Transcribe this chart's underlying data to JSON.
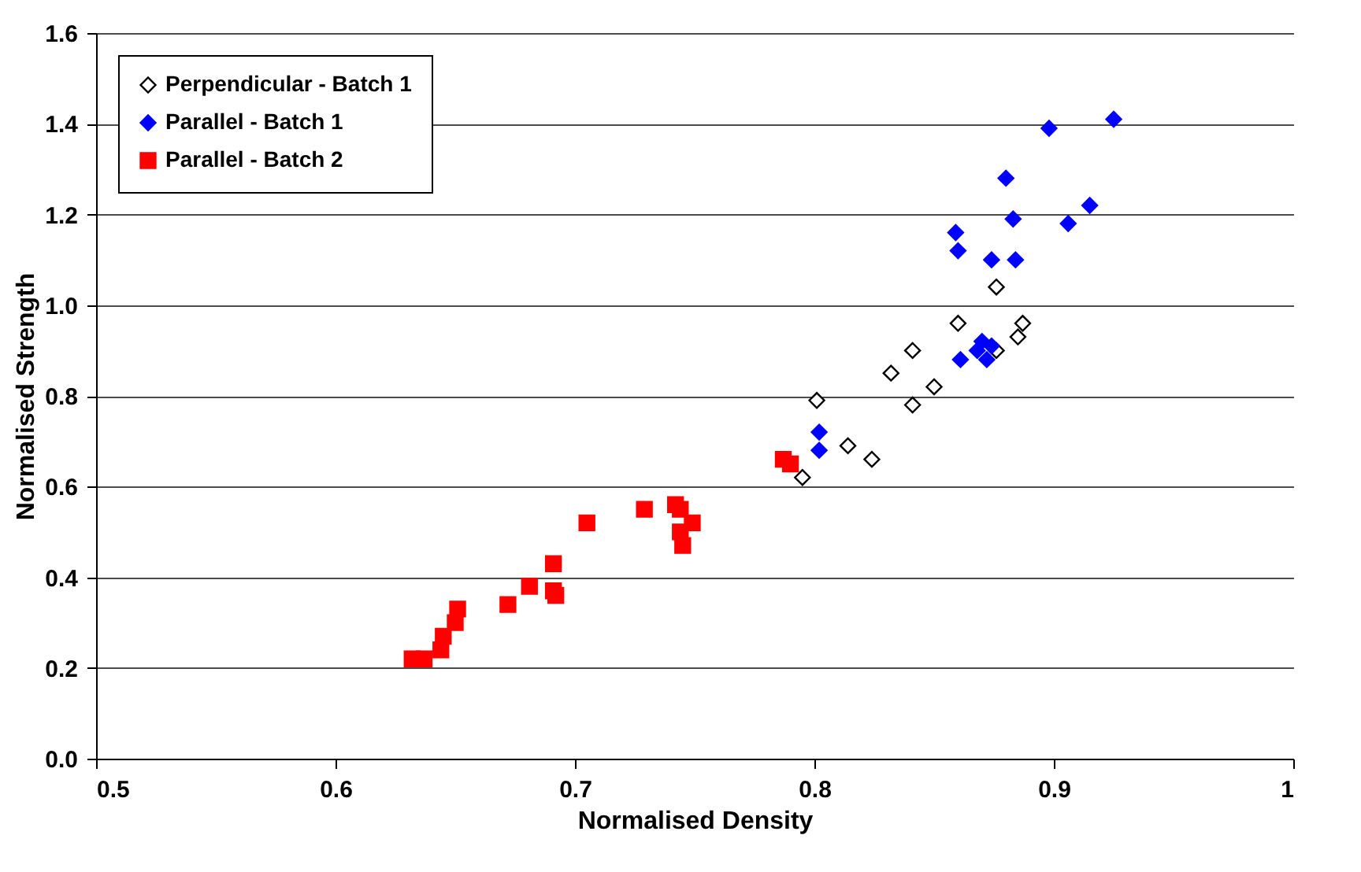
{
  "chart_data": {
    "type": "scatter",
    "xlabel": "Normalised Density",
    "ylabel": "Normalised Strength",
    "xlim": [
      0.5,
      1.0
    ],
    "xticks": [
      0.5,
      0.6,
      0.7,
      0.8,
      0.9,
      1
    ],
    "ylim": [
      0.0,
      1.6
    ],
    "yticks": [
      {
        "value": 0,
        "label": "0.0"
      },
      0.2,
      0.4,
      0.6,
      0.8,
      {
        "value": 1,
        "label": "1.0"
      },
      1.2,
      1.4,
      1.6
    ],
    "grid": "y",
    "legend": "top left",
    "series": [
      {
        "name": "Perpendicular - Batch 1",
        "color": "#ffffff",
        "marker": "diamond",
        "x": [
          0.801,
          0.795,
          0.814,
          0.824,
          0.832,
          0.841,
          0.841,
          0.85,
          0.86,
          0.876,
          0.876,
          0.887,
          0.885
        ],
        "values": [
          0.79,
          0.62,
          0.69,
          0.66,
          0.85,
          0.9,
          0.78,
          0.82,
          0.96,
          0.9,
          1.04,
          0.96,
          0.93
        ]
      },
      {
        "name": "Parallel - Batch 1",
        "color": "#0000ff",
        "marker": "diamond",
        "x": [
          0.802,
          0.802,
          0.861,
          0.868,
          0.87,
          0.872,
          0.874,
          0.859,
          0.86,
          0.874,
          0.884,
          0.883,
          0.88,
          0.898,
          0.925,
          0.906,
          0.915
        ],
        "values": [
          0.72,
          0.68,
          0.88,
          0.9,
          0.92,
          0.88,
          0.91,
          1.16,
          1.12,
          1.1,
          1.1,
          1.19,
          1.28,
          1.39,
          1.41,
          1.18,
          1.22
        ]
      },
      {
        "name": "Parallel - Batch 2",
        "color": "#ff0000",
        "marker": "square",
        "x": [
          0.632,
          0.637,
          0.644,
          0.645,
          0.65,
          0.651,
          0.672,
          0.681,
          0.691,
          0.692,
          0.691,
          0.705,
          0.729,
          0.742,
          0.744,
          0.749,
          0.744,
          0.745,
          0.787,
          0.79
        ],
        "values": [
          0.22,
          0.22,
          0.24,
          0.27,
          0.3,
          0.33,
          0.34,
          0.38,
          0.37,
          0.36,
          0.43,
          0.52,
          0.55,
          0.56,
          0.55,
          0.52,
          0.5,
          0.47,
          0.66,
          0.65
        ]
      }
    ]
  }
}
